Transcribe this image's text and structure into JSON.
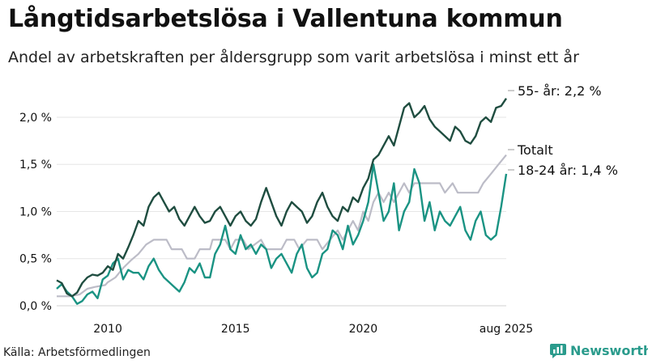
{
  "header": {
    "title": "Långtidsarbetslösa i Vallentuna kommun",
    "subtitle": "Andel av arbetskraften per åldersgrupp som varit arbetslösa i minst ett år"
  },
  "footer": {
    "source": "Källa: Arbetsförmedlingen",
    "brand": "Newsworthy"
  },
  "colors": {
    "age55": "#1f4d40",
    "total": "#bcbcc7",
    "age18_24": "#1a9383",
    "brand": "#2a9b8c"
  },
  "chart_data": {
    "type": "line",
    "title": "Långtidsarbetslösa i Vallentuna kommun",
    "subtitle": "Andel av arbetskraften per åldersgrupp som varit arbetslösa i minst ett år",
    "x_ticks": [
      "2010",
      "2015",
      "2020",
      "aug 2025"
    ],
    "x_tick_values": [
      2010,
      2015,
      2020,
      2025.6
    ],
    "xlim": [
      2008.0,
      2025.6
    ],
    "y_ticks": [
      "0,0 %",
      "0,5 %",
      "1,0 %",
      "1,5 %",
      "2,0 %"
    ],
    "y_tick_values": [
      0,
      0.5,
      1.0,
      1.5,
      2.0
    ],
    "ylim": [
      0,
      2.3
    ],
    "grid": "horizontal",
    "series": [
      {
        "key": "age55",
        "label": "55- år: 2,2 %",
        "points": [
          [
            2008.0,
            0.27
          ],
          [
            2008.2,
            0.24
          ],
          [
            2008.4,
            0.13
          ],
          [
            2008.6,
            0.1
          ],
          [
            2008.8,
            0.14
          ],
          [
            2009.0,
            0.24
          ],
          [
            2009.2,
            0.3
          ],
          [
            2009.4,
            0.33
          ],
          [
            2009.6,
            0.32
          ],
          [
            2009.8,
            0.35
          ],
          [
            2010.0,
            0.42
          ],
          [
            2010.2,
            0.38
          ],
          [
            2010.4,
            0.55
          ],
          [
            2010.6,
            0.5
          ],
          [
            2010.8,
            0.62
          ],
          [
            2011.0,
            0.75
          ],
          [
            2011.2,
            0.9
          ],
          [
            2011.4,
            0.85
          ],
          [
            2011.6,
            1.05
          ],
          [
            2011.8,
            1.15
          ],
          [
            2012.0,
            1.2
          ],
          [
            2012.2,
            1.1
          ],
          [
            2012.4,
            1.0
          ],
          [
            2012.6,
            1.05
          ],
          [
            2012.8,
            0.92
          ],
          [
            2013.0,
            0.85
          ],
          [
            2013.2,
            0.95
          ],
          [
            2013.4,
            1.05
          ],
          [
            2013.6,
            0.95
          ],
          [
            2013.8,
            0.88
          ],
          [
            2014.0,
            0.9
          ],
          [
            2014.2,
            1.0
          ],
          [
            2014.4,
            1.05
          ],
          [
            2014.6,
            0.95
          ],
          [
            2014.8,
            0.85
          ],
          [
            2015.0,
            0.95
          ],
          [
            2015.2,
            1.0
          ],
          [
            2015.4,
            0.9
          ],
          [
            2015.6,
            0.85
          ],
          [
            2015.8,
            0.92
          ],
          [
            2016.0,
            1.1
          ],
          [
            2016.2,
            1.25
          ],
          [
            2016.4,
            1.1
          ],
          [
            2016.6,
            0.95
          ],
          [
            2016.8,
            0.85
          ],
          [
            2017.0,
            1.0
          ],
          [
            2017.2,
            1.1
          ],
          [
            2017.4,
            1.05
          ],
          [
            2017.6,
            1.0
          ],
          [
            2017.8,
            0.88
          ],
          [
            2018.0,
            0.95
          ],
          [
            2018.2,
            1.1
          ],
          [
            2018.4,
            1.2
          ],
          [
            2018.6,
            1.05
          ],
          [
            2018.8,
            0.95
          ],
          [
            2019.0,
            0.9
          ],
          [
            2019.2,
            1.05
          ],
          [
            2019.4,
            1.0
          ],
          [
            2019.6,
            1.15
          ],
          [
            2019.8,
            1.1
          ],
          [
            2020.0,
            1.25
          ],
          [
            2020.2,
            1.35
          ],
          [
            2020.4,
            1.55
          ],
          [
            2020.6,
            1.6
          ],
          [
            2020.8,
            1.7
          ],
          [
            2021.0,
            1.8
          ],
          [
            2021.2,
            1.7
          ],
          [
            2021.4,
            1.9
          ],
          [
            2021.6,
            2.1
          ],
          [
            2021.8,
            2.15
          ],
          [
            2022.0,
            2.0
          ],
          [
            2022.2,
            2.05
          ],
          [
            2022.4,
            2.12
          ],
          [
            2022.6,
            1.98
          ],
          [
            2022.8,
            1.9
          ],
          [
            2023.0,
            1.85
          ],
          [
            2023.2,
            1.8
          ],
          [
            2023.4,
            1.75
          ],
          [
            2023.6,
            1.9
          ],
          [
            2023.8,
            1.85
          ],
          [
            2024.0,
            1.75
          ],
          [
            2024.2,
            1.72
          ],
          [
            2024.4,
            1.8
          ],
          [
            2024.6,
            1.95
          ],
          [
            2024.8,
            2.0
          ],
          [
            2025.0,
            1.95
          ],
          [
            2025.2,
            2.1
          ],
          [
            2025.4,
            2.12
          ],
          [
            2025.6,
            2.2
          ]
        ]
      },
      {
        "key": "total",
        "label": "Totalt",
        "points": [
          [
            2008.0,
            0.1
          ],
          [
            2008.5,
            0.1
          ],
          [
            2008.9,
            0.12
          ],
          [
            2009.2,
            0.18
          ],
          [
            2009.5,
            0.2
          ],
          [
            2009.9,
            0.22
          ],
          [
            2010.0,
            0.25
          ],
          [
            2010.3,
            0.3
          ],
          [
            2010.6,
            0.4
          ],
          [
            2010.9,
            0.48
          ],
          [
            2011.2,
            0.55
          ],
          [
            2011.5,
            0.65
          ],
          [
            2011.8,
            0.7
          ],
          [
            2012.3,
            0.7
          ],
          [
            2012.5,
            0.6
          ],
          [
            2012.9,
            0.6
          ],
          [
            2013.1,
            0.5
          ],
          [
            2013.4,
            0.5
          ],
          [
            2013.6,
            0.6
          ],
          [
            2014.0,
            0.6
          ],
          [
            2014.1,
            0.7
          ],
          [
            2014.6,
            0.7
          ],
          [
            2014.8,
            0.6
          ],
          [
            2015.0,
            0.7
          ],
          [
            2015.3,
            0.7
          ],
          [
            2015.5,
            0.6
          ],
          [
            2016.0,
            0.7
          ],
          [
            2016.2,
            0.6
          ],
          [
            2016.8,
            0.6
          ],
          [
            2017.0,
            0.7
          ],
          [
            2017.3,
            0.7
          ],
          [
            2017.5,
            0.6
          ],
          [
            2017.8,
            0.7
          ],
          [
            2018.2,
            0.7
          ],
          [
            2018.4,
            0.6
          ],
          [
            2018.7,
            0.7
          ],
          [
            2019.0,
            0.8
          ],
          [
            2019.2,
            0.7
          ],
          [
            2019.4,
            0.8
          ],
          [
            2019.6,
            0.9
          ],
          [
            2019.8,
            0.8
          ],
          [
            2020.0,
            1.0
          ],
          [
            2020.2,
            0.9
          ],
          [
            2020.4,
            1.1
          ],
          [
            2020.6,
            1.2
          ],
          [
            2020.8,
            1.1
          ],
          [
            2021.0,
            1.2
          ],
          [
            2021.2,
            1.1
          ],
          [
            2021.4,
            1.2
          ],
          [
            2021.6,
            1.3
          ],
          [
            2021.8,
            1.2
          ],
          [
            2022.0,
            1.3
          ],
          [
            2023.0,
            1.3
          ],
          [
            2023.2,
            1.2
          ],
          [
            2023.5,
            1.3
          ],
          [
            2023.7,
            1.2
          ],
          [
            2024.5,
            1.2
          ],
          [
            2024.7,
            1.3
          ],
          [
            2025.0,
            1.4
          ],
          [
            2025.3,
            1.5
          ],
          [
            2025.6,
            1.6
          ]
        ]
      },
      {
        "key": "age18_24",
        "label": "18-24 år: 1,4 %",
        "points": [
          [
            2008.0,
            0.18
          ],
          [
            2008.2,
            0.23
          ],
          [
            2008.4,
            0.15
          ],
          [
            2008.6,
            0.1
          ],
          [
            2008.8,
            0.02
          ],
          [
            2009.0,
            0.05
          ],
          [
            2009.2,
            0.12
          ],
          [
            2009.4,
            0.15
          ],
          [
            2009.6,
            0.08
          ],
          [
            2009.8,
            0.28
          ],
          [
            2010.0,
            0.32
          ],
          [
            2010.2,
            0.45
          ],
          [
            2010.4,
            0.5
          ],
          [
            2010.6,
            0.28
          ],
          [
            2010.8,
            0.38
          ],
          [
            2011.0,
            0.35
          ],
          [
            2011.2,
            0.35
          ],
          [
            2011.4,
            0.28
          ],
          [
            2011.6,
            0.42
          ],
          [
            2011.8,
            0.5
          ],
          [
            2012.0,
            0.38
          ],
          [
            2012.2,
            0.3
          ],
          [
            2012.4,
            0.25
          ],
          [
            2012.6,
            0.2
          ],
          [
            2012.8,
            0.15
          ],
          [
            2013.0,
            0.25
          ],
          [
            2013.2,
            0.4
          ],
          [
            2013.4,
            0.35
          ],
          [
            2013.6,
            0.45
          ],
          [
            2013.8,
            0.3
          ],
          [
            2014.0,
            0.3
          ],
          [
            2014.2,
            0.55
          ],
          [
            2014.4,
            0.65
          ],
          [
            2014.6,
            0.85
          ],
          [
            2014.8,
            0.6
          ],
          [
            2015.0,
            0.55
          ],
          [
            2015.2,
            0.75
          ],
          [
            2015.4,
            0.6
          ],
          [
            2015.6,
            0.65
          ],
          [
            2015.8,
            0.55
          ],
          [
            2016.0,
            0.65
          ],
          [
            2016.2,
            0.6
          ],
          [
            2016.4,
            0.4
          ],
          [
            2016.6,
            0.5
          ],
          [
            2016.8,
            0.55
          ],
          [
            2017.0,
            0.45
          ],
          [
            2017.2,
            0.35
          ],
          [
            2017.4,
            0.55
          ],
          [
            2017.6,
            0.65
          ],
          [
            2017.8,
            0.4
          ],
          [
            2018.0,
            0.3
          ],
          [
            2018.2,
            0.35
          ],
          [
            2018.4,
            0.55
          ],
          [
            2018.6,
            0.6
          ],
          [
            2018.8,
            0.8
          ],
          [
            2019.0,
            0.75
          ],
          [
            2019.2,
            0.6
          ],
          [
            2019.4,
            0.85
          ],
          [
            2019.6,
            0.65
          ],
          [
            2019.8,
            0.75
          ],
          [
            2020.0,
            0.9
          ],
          [
            2020.2,
            1.1
          ],
          [
            2020.4,
            1.5
          ],
          [
            2020.6,
            1.2
          ],
          [
            2020.8,
            0.9
          ],
          [
            2021.0,
            1.0
          ],
          [
            2021.2,
            1.3
          ],
          [
            2021.4,
            0.8
          ],
          [
            2021.6,
            1.0
          ],
          [
            2021.8,
            1.1
          ],
          [
            2022.0,
            1.45
          ],
          [
            2022.2,
            1.3
          ],
          [
            2022.4,
            0.9
          ],
          [
            2022.6,
            1.1
          ],
          [
            2022.8,
            0.8
          ],
          [
            2023.0,
            1.0
          ],
          [
            2023.2,
            0.9
          ],
          [
            2023.4,
            0.85
          ],
          [
            2023.6,
            0.95
          ],
          [
            2023.8,
            1.05
          ],
          [
            2024.0,
            0.8
          ],
          [
            2024.2,
            0.7
          ],
          [
            2024.4,
            0.9
          ],
          [
            2024.6,
            1.0
          ],
          [
            2024.8,
            0.75
          ],
          [
            2025.0,
            0.7
          ],
          [
            2025.2,
            0.75
          ],
          [
            2025.4,
            1.05
          ],
          [
            2025.6,
            1.4
          ]
        ]
      }
    ]
  }
}
